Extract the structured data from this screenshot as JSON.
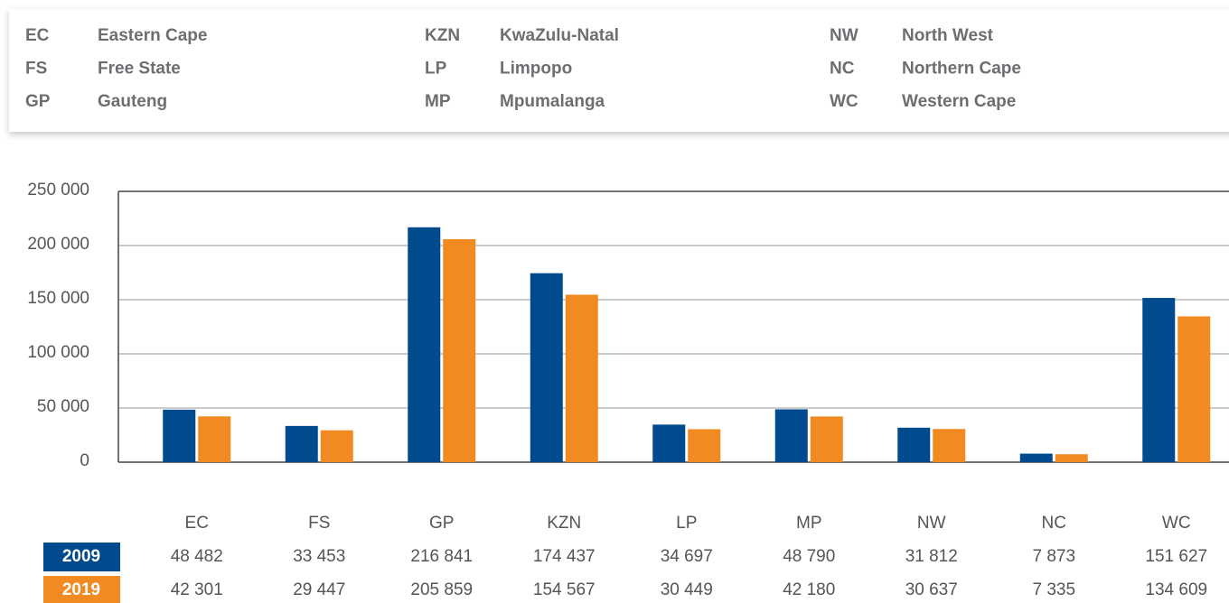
{
  "legend": {
    "items": [
      {
        "code": "EC",
        "name": "Eastern Cape"
      },
      {
        "code": "FS",
        "name": "Free State"
      },
      {
        "code": "GP",
        "name": "Gauteng"
      },
      {
        "code": "KZN",
        "name": "KwaZulu-Natal"
      },
      {
        "code": "LP",
        "name": "Limpopo"
      },
      {
        "code": "MP",
        "name": "Mpumalanga"
      },
      {
        "code": "NW",
        "name": "North West"
      },
      {
        "code": "NC",
        "name": "Northern Cape"
      },
      {
        "code": "WC",
        "name": "Western Cape"
      }
    ]
  },
  "chart_data": {
    "type": "bar",
    "categories": [
      "EC",
      "FS",
      "GP",
      "KZN",
      "LP",
      "MP",
      "NW",
      "NC",
      "WC"
    ],
    "series": [
      {
        "name": "2009",
        "color": "#004b8d",
        "values": [
          48482,
          33453,
          216841,
          174437,
          34697,
          48790,
          31812,
          7873,
          151627
        ],
        "value_labels": [
          "48 482",
          "33 453",
          "216 841",
          "174 437",
          "34 697",
          "48 790",
          "31 812",
          "7 873",
          "151 627"
        ]
      },
      {
        "name": "2019",
        "color": "#f18a21",
        "values": [
          42301,
          29447,
          205859,
          154567,
          30449,
          42180,
          30637,
          7335,
          134609
        ],
        "value_labels": [
          "42 301",
          "29 447",
          "205 859",
          "154 567",
          "30 449",
          "42 180",
          "30 637",
          "7 335",
          "134 609"
        ]
      }
    ],
    "ylim": [
      0,
      250000
    ],
    "yticks": [
      0,
      {
        "value": 50000,
        "label": "50 000"
      },
      {
        "value": 100000,
        "label": "100 000"
      },
      {
        "value": 150000,
        "label": "150 000"
      },
      {
        "value": 200000,
        "label": "200 000"
      },
      {
        "value": 250000,
        "label": "250 000"
      }
    ],
    "grid": true
  }
}
